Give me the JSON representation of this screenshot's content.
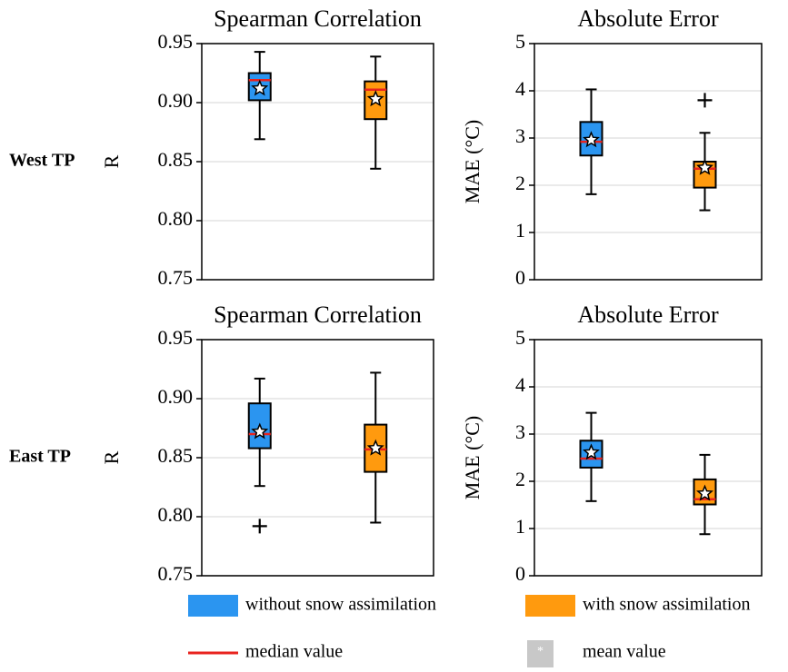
{
  "row_labels": [
    "West TP",
    "East TP"
  ],
  "legend": {
    "series": [
      {
        "name": "without snow assimilation",
        "color": "#2b95f0"
      },
      {
        "name": "with snow assimilation",
        "color": "#ff9a0e"
      }
    ],
    "median": {
      "label": "median value",
      "color": "#e8231e"
    },
    "mean": {
      "label": "mean value",
      "marker": "*"
    }
  },
  "chart_data": [
    {
      "type": "box",
      "title": "Spearman Correlation",
      "ylabel": "R",
      "ylim": [
        0.75,
        0.95
      ],
      "yticks": [
        0.75,
        {
          "value": 0.8,
          "label": "0.80"
        },
        0.85,
        {
          "value": 0.9,
          "label": "0.90"
        },
        0.95
      ],
      "grid": true,
      "boxes": [
        {
          "whislo": 0.869,
          "q1": 0.902,
          "med": 0.919,
          "q3": 0.925,
          "whishi": 0.943,
          "mean": 0.912,
          "fliers": []
        },
        {
          "whislo": 0.844,
          "q1": 0.886,
          "med": 0.911,
          "q3": 0.918,
          "whishi": 0.939,
          "mean": 0.903,
          "fliers": []
        }
      ]
    },
    {
      "type": "box",
      "title": "Absolute Error",
      "ylabel": "MAE (°C)",
      "ylim": [
        0,
        5
      ],
      "yticks": [
        0,
        1,
        2,
        3,
        4,
        5
      ],
      "grid": true,
      "boxes": [
        {
          "whislo": 1.81,
          "q1": 2.63,
          "med": 2.92,
          "q3": 3.34,
          "whishi": 4.03,
          "mean": 2.96,
          "fliers": []
        },
        {
          "whislo": 1.47,
          "q1": 1.95,
          "med": 2.35,
          "q3": 2.5,
          "whishi": 3.11,
          "mean": 2.37,
          "fliers": [
            3.8
          ]
        }
      ]
    },
    {
      "type": "box",
      "title": "Spearman Correlation",
      "ylabel": "R",
      "ylim": [
        0.75,
        0.95
      ],
      "yticks": [
        0.75,
        {
          "value": 0.8,
          "label": "0.80"
        },
        0.85,
        {
          "value": 0.9,
          "label": "0.90"
        },
        0.95
      ],
      "grid": true,
      "boxes": [
        {
          "whislo": 0.826,
          "q1": 0.858,
          "med": 0.87,
          "q3": 0.896,
          "whishi": 0.917,
          "mean": 0.872,
          "fliers": [
            0.792
          ]
        },
        {
          "whislo": 0.795,
          "q1": 0.838,
          "med": 0.857,
          "q3": 0.878,
          "whishi": 0.922,
          "mean": 0.858,
          "fliers": []
        }
      ]
    },
    {
      "type": "box",
      "title": "Absolute Error",
      "ylabel": "MAE (°C)",
      "ylim": [
        0,
        5
      ],
      "yticks": [
        0,
        1,
        2,
        3,
        4,
        5
      ],
      "grid": true,
      "boxes": [
        {
          "whislo": 1.58,
          "q1": 2.29,
          "med": 2.48,
          "q3": 2.86,
          "whishi": 3.45,
          "mean": 2.61,
          "fliers": []
        },
        {
          "whislo": 0.88,
          "q1": 1.51,
          "med": 1.62,
          "q3": 2.04,
          "whishi": 2.56,
          "mean": 1.74,
          "fliers": []
        }
      ]
    }
  ]
}
